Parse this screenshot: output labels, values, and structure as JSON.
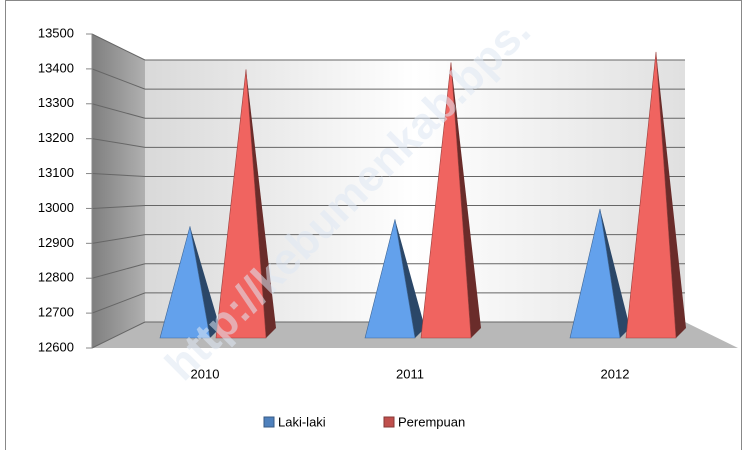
{
  "chart_data": {
    "type": "pyramid",
    "categories": [
      "2010",
      "2011",
      "2012"
    ],
    "series": [
      {
        "name": "Laki-laki",
        "color": "#4f81bd",
        "values": [
          12920,
          12940,
          12970
        ]
      },
      {
        "name": "Perempuan",
        "color": "#c0504d",
        "values": [
          13370,
          13390,
          13420
        ]
      }
    ],
    "ylim": [
      12600,
      13500
    ],
    "yticks": [
      12600,
      12700,
      12800,
      12900,
      13000,
      13100,
      13200,
      13300,
      13400,
      13500
    ],
    "grid": true,
    "legend": "bottom",
    "watermark": "http://kebumenkab.bps."
  }
}
